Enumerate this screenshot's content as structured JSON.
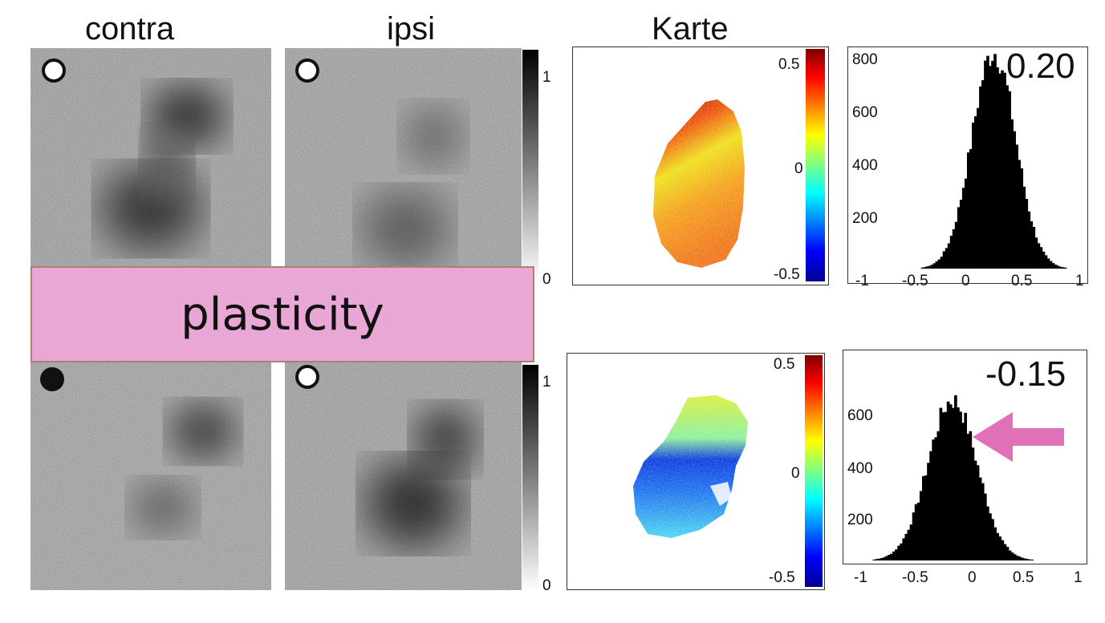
{
  "headers": {
    "contra": "contra",
    "ipsi": "ipsi",
    "map": "Karte"
  },
  "banner": {
    "text": "plasticity"
  },
  "gray_colorbar": {
    "top_label": "1",
    "bottom_label": "0"
  },
  "color_colorbar": {
    "top_label": "0.5",
    "mid_label": "0",
    "bottom_label": "-0.5"
  },
  "rows": [
    {
      "contra_stimulus": "open",
      "ipsi_stimulus": "open",
      "histogram": {
        "value_label": "0.20",
        "mean": 0.2,
        "y_ticks": [
          "800",
          "600",
          "400",
          "200"
        ],
        "x_ticks": [
          "-1",
          "-0.5",
          "0",
          "0.5",
          "1"
        ]
      }
    },
    {
      "contra_stimulus": "filled",
      "ipsi_stimulus": "open",
      "histogram": {
        "value_label": "-0.15",
        "mean": -0.15,
        "y_ticks": [
          "600",
          "400",
          "200"
        ],
        "x_ticks": [
          "-1",
          "-0.5",
          "0",
          "0.5",
          "1"
        ]
      }
    }
  ],
  "colors": {
    "banner": "#e8a7d4",
    "arrow": "#e070b8"
  }
}
